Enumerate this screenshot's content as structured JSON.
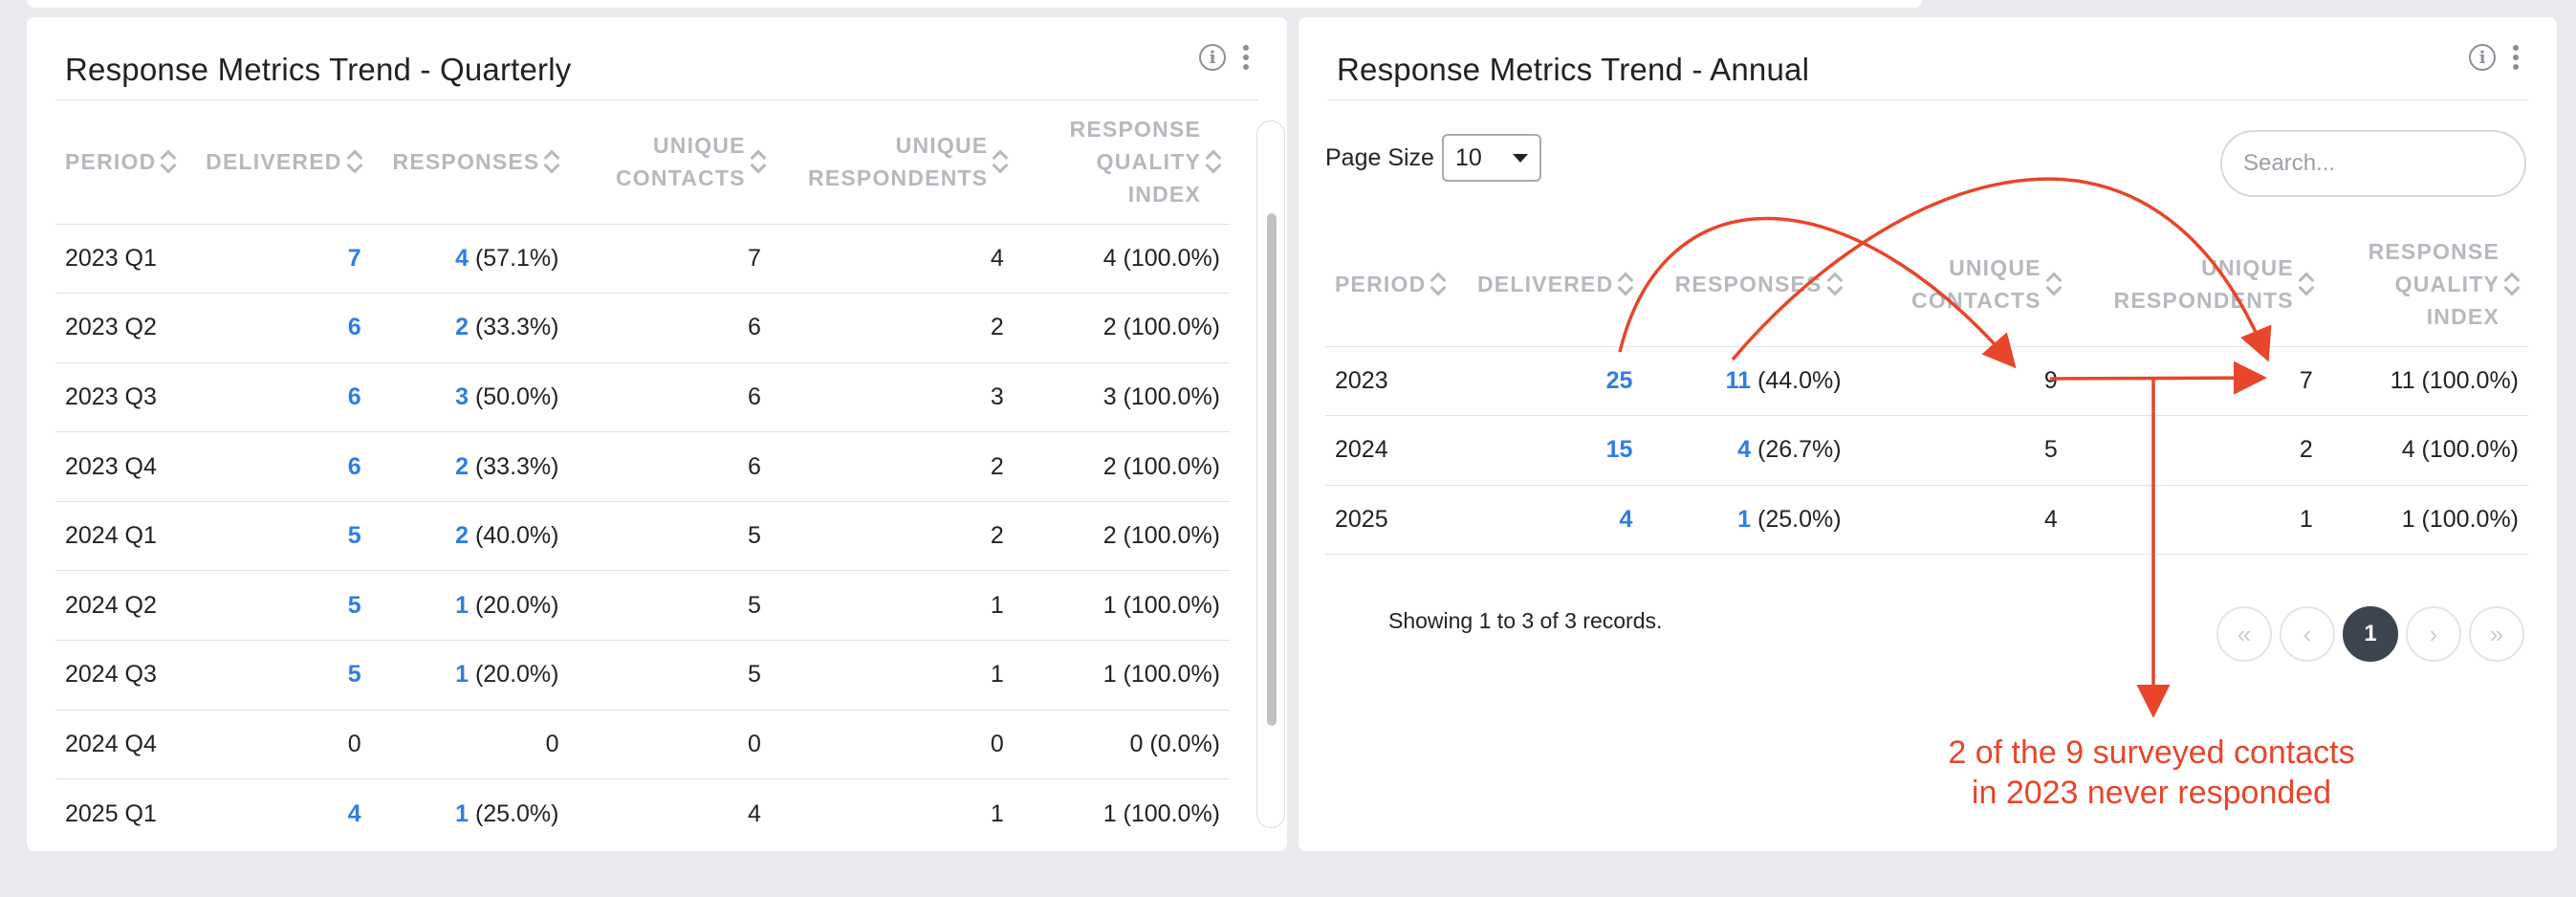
{
  "quarterly": {
    "title": "Response Metrics Trend - Quarterly",
    "columns": [
      {
        "label": "PERIOD",
        "align": "l"
      },
      {
        "label": "DELIVERED",
        "align": "r"
      },
      {
        "label": "RESPONSES",
        "align": "r"
      },
      {
        "label": "UNIQUE CONTACTS",
        "align": "r"
      },
      {
        "label": "UNIQUE RESPONDENTS",
        "align": "r"
      },
      {
        "label": "RESPONSE QUALITY INDEX",
        "align": "r"
      }
    ],
    "rows": [
      {
        "period": "2023 Q1",
        "delivered": "7",
        "delivered_link": true,
        "responses": "4",
        "responses_pct": "(57.1%)",
        "responses_link": true,
        "unique_contacts": "7",
        "unique_respondents": "4",
        "quality": "4 (100.0%)"
      },
      {
        "period": "2023 Q2",
        "delivered": "6",
        "delivered_link": true,
        "responses": "2",
        "responses_pct": "(33.3%)",
        "responses_link": true,
        "unique_contacts": "6",
        "unique_respondents": "2",
        "quality": "2 (100.0%)"
      },
      {
        "period": "2023 Q3",
        "delivered": "6",
        "delivered_link": true,
        "responses": "3",
        "responses_pct": "(50.0%)",
        "responses_link": true,
        "unique_contacts": "6",
        "unique_respondents": "3",
        "quality": "3 (100.0%)"
      },
      {
        "period": "2023 Q4",
        "delivered": "6",
        "delivered_link": true,
        "responses": "2",
        "responses_pct": "(33.3%)",
        "responses_link": true,
        "unique_contacts": "6",
        "unique_respondents": "2",
        "quality": "2 (100.0%)"
      },
      {
        "period": "2024 Q1",
        "delivered": "5",
        "delivered_link": true,
        "responses": "2",
        "responses_pct": "(40.0%)",
        "responses_link": true,
        "unique_contacts": "5",
        "unique_respondents": "2",
        "quality": "2 (100.0%)"
      },
      {
        "period": "2024 Q2",
        "delivered": "5",
        "delivered_link": true,
        "responses": "1",
        "responses_pct": "(20.0%)",
        "responses_link": true,
        "unique_contacts": "5",
        "unique_respondents": "1",
        "quality": "1 (100.0%)"
      },
      {
        "period": "2024 Q3",
        "delivered": "5",
        "delivered_link": true,
        "responses": "1",
        "responses_pct": "(20.0%)",
        "responses_link": true,
        "unique_contacts": "5",
        "unique_respondents": "1",
        "quality": "1 (100.0%)"
      },
      {
        "period": "2024 Q4",
        "delivered": "0",
        "delivered_link": false,
        "responses": "0",
        "responses_pct": "",
        "responses_link": false,
        "unique_contacts": "0",
        "unique_respondents": "0",
        "quality": "0 (0.0%)"
      },
      {
        "period": "2025 Q1",
        "delivered": "4",
        "delivered_link": true,
        "responses": "1",
        "responses_pct": "(25.0%)",
        "responses_link": true,
        "unique_contacts": "4",
        "unique_respondents": "1",
        "quality": "1 (100.0%)"
      }
    ]
  },
  "annual": {
    "title": "Response Metrics Trend - Annual",
    "page_size_label": "Page Size",
    "page_size_value": "10",
    "search_placeholder": "Search...",
    "columns": [
      {
        "label": "PERIOD",
        "align": "l"
      },
      {
        "label": "DELIVERED",
        "align": "r"
      },
      {
        "label": "RESPONSES",
        "align": "r"
      },
      {
        "label": "UNIQUE CONTACTS",
        "align": "r"
      },
      {
        "label": "UNIQUE RESPONDENTS",
        "align": "r"
      },
      {
        "label": "RESPONSE QUALITY INDEX",
        "align": "r"
      }
    ],
    "rows": [
      {
        "period": "2023",
        "delivered": "25",
        "delivered_link": true,
        "responses": "11",
        "responses_pct": "(44.0%)",
        "responses_link": true,
        "unique_contacts": "9",
        "unique_respondents": "7",
        "quality": "11 (100.0%)"
      },
      {
        "period": "2024",
        "delivered": "15",
        "delivered_link": true,
        "responses": "4",
        "responses_pct": "(26.7%)",
        "responses_link": true,
        "unique_contacts": "5",
        "unique_respondents": "2",
        "quality": "4 (100.0%)"
      },
      {
        "period": "2025",
        "delivered": "4",
        "delivered_link": true,
        "responses": "1",
        "responses_pct": "(25.0%)",
        "responses_link": true,
        "unique_contacts": "4",
        "unique_respondents": "1",
        "quality": "1 (100.0%)"
      }
    ],
    "records_text": "Showing 1 to 3 of 3 records.",
    "pager": {
      "first": "«",
      "prev": "‹",
      "current": "1",
      "next": "›",
      "last": "»"
    }
  },
  "annotation": {
    "line1": "2 of the 9 surveyed contacts",
    "line2": "in 2023 never responded",
    "color": "#e8452a"
  },
  "colors": {
    "link": "#2f7de1",
    "header": "#b5b9be",
    "pager_active": "#3c4450"
  }
}
